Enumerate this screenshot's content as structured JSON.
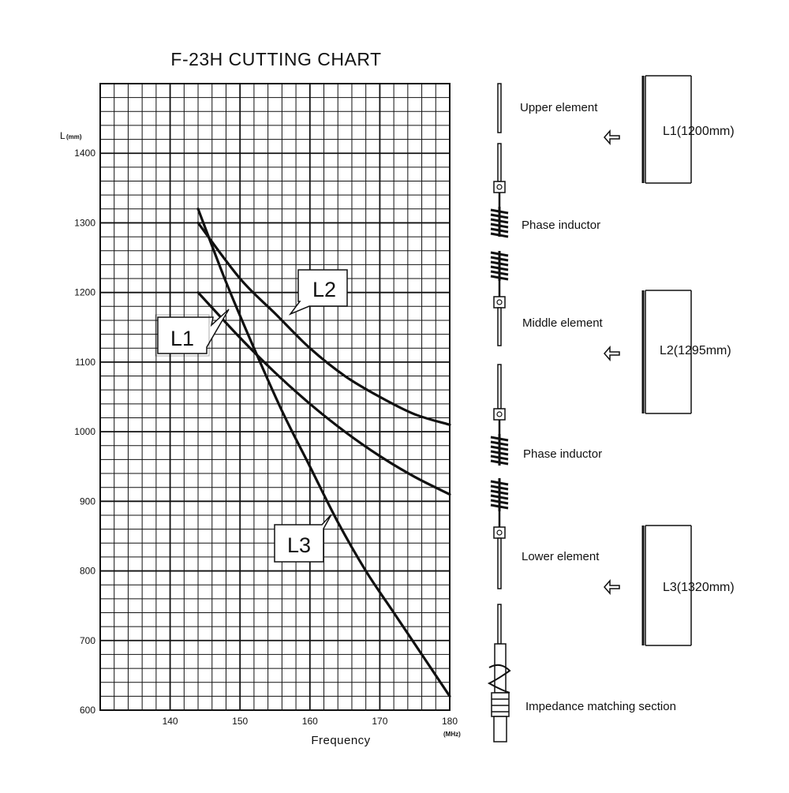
{
  "chart_data": {
    "type": "line",
    "title": "F-23H CUTTING CHART",
    "xlabel": "Frequency",
    "xunit": "(MHz)",
    "ylabel": "L",
    "yunit": "(mm)",
    "xlim": [
      130,
      180
    ],
    "ylim": [
      600,
      1500
    ],
    "x_ticks": [
      140,
      150,
      160,
      170,
      180
    ],
    "y_ticks": [
      600,
      700,
      800,
      900,
      1000,
      1100,
      1200,
      1300,
      1400
    ],
    "grid": true,
    "series": [
      {
        "name": "L1",
        "x": [
          144,
          150,
          155,
          160,
          165,
          170,
          175,
          180
        ],
        "y": [
          1200,
          1135,
          1085,
          1040,
          1000,
          965,
          935,
          910
        ]
      },
      {
        "name": "L2",
        "x": [
          144,
          150,
          155,
          160,
          165,
          170,
          175,
          180
        ],
        "y": [
          1300,
          1220,
          1170,
          1120,
          1080,
          1050,
          1025,
          1010
        ]
      },
      {
        "name": "L3",
        "x": [
          144,
          148,
          152,
          156,
          160,
          164,
          168,
          172,
          176,
          180
        ],
        "y": [
          1320,
          1215,
          1120,
          1030,
          950,
          870,
          800,
          740,
          680,
          620
        ]
      }
    ]
  },
  "diagram": {
    "parts": [
      {
        "label": "Upper element"
      },
      {
        "label": "Phase inductor"
      },
      {
        "label": "Middle element"
      },
      {
        "label": "Phase inductor"
      },
      {
        "label": "Lower element"
      },
      {
        "label": "Impedance matching section"
      }
    ],
    "lengths": [
      {
        "label": "L1(1200mm)"
      },
      {
        "label": "L2(1295mm)"
      },
      {
        "label": "L3(1320mm)"
      }
    ]
  }
}
